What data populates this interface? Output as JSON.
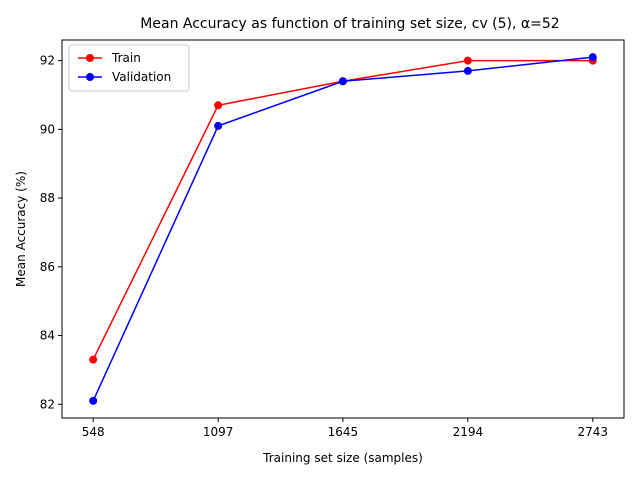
{
  "chart_data": {
    "type": "line",
    "title": "Mean Accuracy as function of training set size, cv (5), α=52",
    "xlabel": "Training set size (samples)",
    "ylabel": "Mean Accuracy (%)",
    "x": [
      548,
      1097,
      1645,
      2194,
      2743
    ],
    "xticks": [
      "548",
      "1097",
      "1645",
      "2194",
      "2743"
    ],
    "yticks": [
      "82",
      "84",
      "86",
      "88",
      "90",
      "92"
    ],
    "ylim": [
      81.6,
      92.6
    ],
    "xlim": [
      411,
      2880
    ],
    "grid": false,
    "legend_position": "upper-left",
    "series": [
      {
        "name": "Train",
        "color": "#ff0000",
        "values": [
          83.3,
          90.7,
          91.4,
          92.0,
          92.0
        ]
      },
      {
        "name": "Validation",
        "color": "#0000ff",
        "values": [
          82.1,
          90.1,
          91.4,
          91.7,
          92.1
        ]
      }
    ]
  }
}
